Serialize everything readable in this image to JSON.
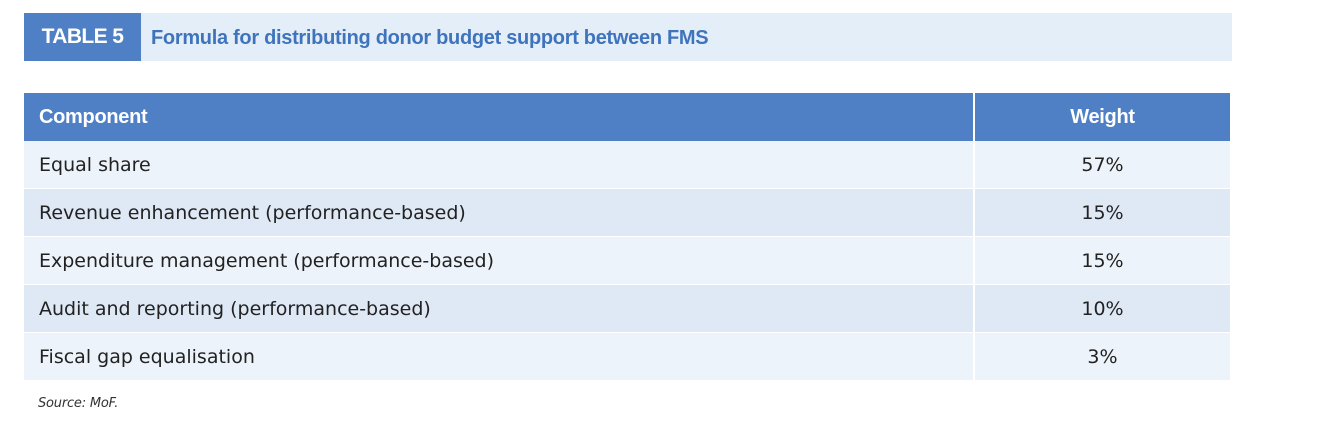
{
  "header": {
    "table_number": "TABLE 5",
    "title": "Formula for distributing donor budget support between FMS"
  },
  "table": {
    "columns": [
      "Component",
      "Weight"
    ],
    "rows": [
      {
        "component": "Equal share",
        "weight": "57%"
      },
      {
        "component": "Revenue enhancement (performance-based)",
        "weight": "15%"
      },
      {
        "component": "Expenditure management (performance-based)",
        "weight": "15%"
      },
      {
        "component": "Audit and reporting (performance-based)",
        "weight": "10%"
      },
      {
        "component": "Fiscal gap equalisation",
        "weight": "3%"
      }
    ]
  },
  "source": "Source: MoF.",
  "colors": {
    "accent": "#4f80c6",
    "title_text": "#3f74bd",
    "title_bar_bg": "#e4eef9",
    "row_light": "#edf3fa",
    "row_dark": "#dfe9f6"
  }
}
